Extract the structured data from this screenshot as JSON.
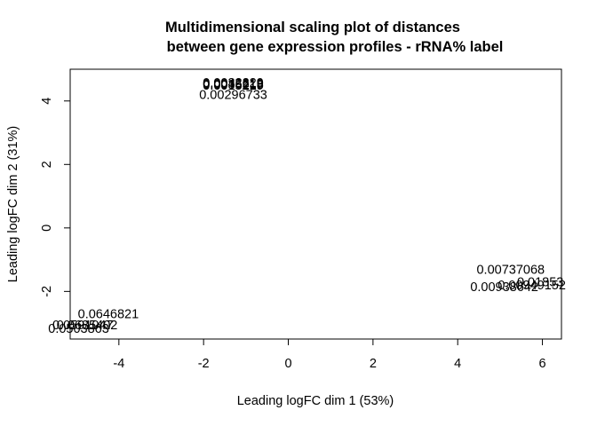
{
  "chart_data": {
    "type": "scatter",
    "title_lines": [
      "Multidimensional scaling plot of distances",
      "between gene expression profiles - rRNA% label"
    ],
    "xlabel": "Leading logFC dim 1 (53%)",
    "ylabel": "Leading logFC dim 2 (31%)",
    "xlim": [
      -5.15,
      6.45
    ],
    "ylim": [
      -3.5,
      5.0
    ],
    "x_ticks": [
      -4,
      -2,
      0,
      2,
      4,
      6
    ],
    "y_ticks": [
      -2,
      0,
      2,
      4
    ],
    "grid": false,
    "legend": "none",
    "points": [
      {
        "x": -1.3,
        "y": 4.58,
        "label": "0.0032229"
      },
      {
        "x": -1.3,
        "y": 4.55,
        "label": "0.0045619"
      },
      {
        "x": -1.3,
        "y": 4.52,
        "label": "0.0036218"
      },
      {
        "x": -1.3,
        "y": 4.49,
        "label": "0.0015219"
      },
      {
        "x": -1.3,
        "y": 4.2,
        "label": "0.00296733"
      },
      {
        "x": 5.25,
        "y": -1.3,
        "label": "0.00737068"
      },
      {
        "x": 5.95,
        "y": -1.7,
        "label": "0.01853"
      },
      {
        "x": 5.1,
        "y": -1.85,
        "label": "0.00938642"
      },
      {
        "x": 5.75,
        "y": -1.79,
        "label": "0.00949152"
      },
      {
        "x": -4.25,
        "y": -2.7,
        "label": "0.0646821"
      },
      {
        "x": -4.75,
        "y": -3.05,
        "label": "0.0685402"
      },
      {
        "x": -4.95,
        "y": -3.17,
        "label": "0.0503863"
      },
      {
        "x": -4.85,
        "y": -3.05,
        "label": "0.0591047"
      }
    ]
  }
}
